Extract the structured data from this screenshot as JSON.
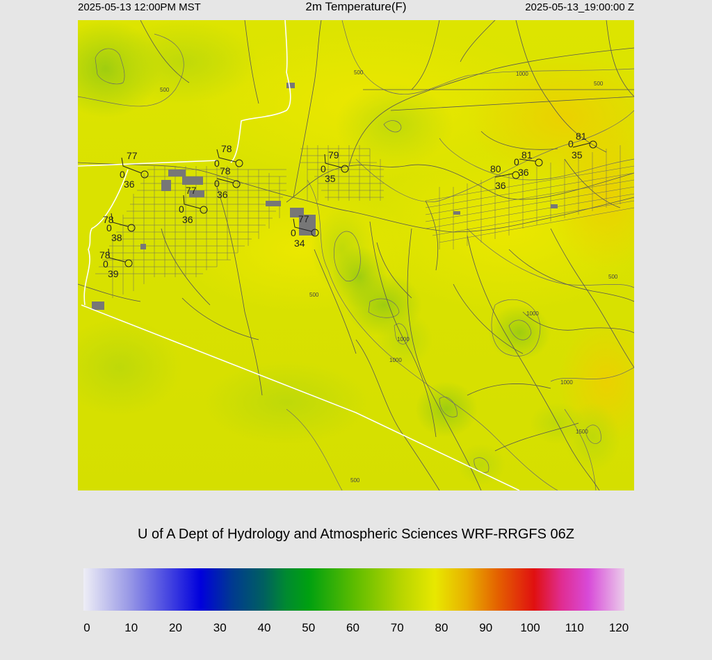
{
  "header": {
    "valid_local": "2025-05-13 12:00PM MST",
    "title": "2m Temperature(F)",
    "valid_utc": "2025-05-13_19:00:00 Z"
  },
  "credit": "U of A Dept of Hydrology and Atmospheric Sciences WRF-RRGFS 06Z",
  "colors": {
    "background": "#e6e6e6",
    "map_base": "#d7e000",
    "border_line": "#ffffff",
    "road_line": "#555555"
  },
  "colorbar": {
    "ticks": [
      "0",
      "10",
      "20",
      "30",
      "40",
      "50",
      "60",
      "70",
      "80",
      "90",
      "100",
      "110",
      "120"
    ],
    "min": 0,
    "max": 120,
    "stops": [
      {
        "value": 0,
        "color": "#eeeef6"
      },
      {
        "value": 10,
        "color": "#9a9ae6"
      },
      {
        "value": 20,
        "color": "#3a3ae0"
      },
      {
        "value": 26,
        "color": "#0000dc"
      },
      {
        "value": 33,
        "color": "#003a90"
      },
      {
        "value": 40,
        "color": "#006060"
      },
      {
        "value": 45,
        "color": "#008a30"
      },
      {
        "value": 50,
        "color": "#00a010"
      },
      {
        "value": 60,
        "color": "#5cbc00"
      },
      {
        "value": 70,
        "color": "#b4d400"
      },
      {
        "value": 78,
        "color": "#e8e800"
      },
      {
        "value": 85,
        "color": "#e8b000"
      },
      {
        "value": 92,
        "color": "#e46000"
      },
      {
        "value": 100,
        "color": "#e01010"
      },
      {
        "value": 106,
        "color": "#e02c90"
      },
      {
        "value": 112,
        "color": "#d84ad8"
      },
      {
        "value": 120,
        "color": "#eaccea"
      }
    ]
  },
  "stations": [
    {
      "id": "s1",
      "temp": "77",
      "dew": "36",
      "wind": "0"
    },
    {
      "id": "s2",
      "temp": "78",
      "dew": "36",
      "wind": "0"
    },
    {
      "id": "s3",
      "temp": "78",
      "dew": "36",
      "wind": "0"
    },
    {
      "id": "s4",
      "temp": "77",
      "dew": "36",
      "wind": "0"
    },
    {
      "id": "s5",
      "temp": "78",
      "dew": "38",
      "wind": "0"
    },
    {
      "id": "s6",
      "temp": "78",
      "dew": "39",
      "wind": "0"
    },
    {
      "id": "s7",
      "temp": "79",
      "dew": "35",
      "wind": "0"
    },
    {
      "id": "s8",
      "temp": "77",
      "dew": "34",
      "wind": "0"
    },
    {
      "id": "s9",
      "temp": "80",
      "dew": "36",
      "wind": "0"
    },
    {
      "id": "s10",
      "temp": "81",
      "dew": "36",
      "wind": "0"
    },
    {
      "id": "s11",
      "temp": "81",
      "dew": "35",
      "wind": "0"
    }
  ],
  "contour_labels": [
    "500",
    "500",
    "1000",
    "500",
    "500",
    "1000",
    "1000",
    "1000",
    "1000",
    "500",
    "1500",
    "500"
  ]
}
